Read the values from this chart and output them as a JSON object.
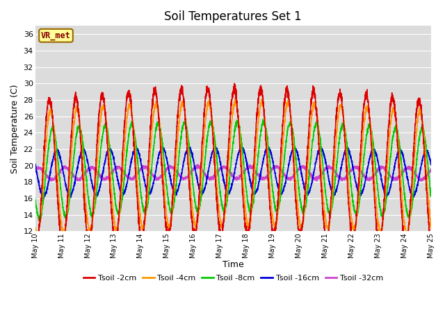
{
  "title": "Soil Temperatures Set 1",
  "xlabel": "Time",
  "ylabel": "Soil Temperature (C)",
  "ylim": [
    12,
    37
  ],
  "yticks": [
    12,
    14,
    16,
    18,
    20,
    22,
    24,
    26,
    28,
    30,
    32,
    34,
    36
  ],
  "bg_color": "#dcdcdc",
  "fig_color": "#ffffff",
  "legend_labels": [
    "Tsoil -2cm",
    "Tsoil -4cm",
    "Tsoil -8cm",
    "Tsoil -16cm",
    "Tsoil -32cm"
  ],
  "legend_colors": [
    "#dd0000",
    "#ff9900",
    "#00cc00",
    "#0000dd",
    "#cc44cc"
  ],
  "annotation_text": "VR_met",
  "annotation_box_color": "#ffff99",
  "annotation_box_edge": "#996600",
  "annotation_text_color": "#880000",
  "n_days": 15,
  "start_day": 10,
  "grid_color": "#ffffff",
  "linewidth": 1.2
}
